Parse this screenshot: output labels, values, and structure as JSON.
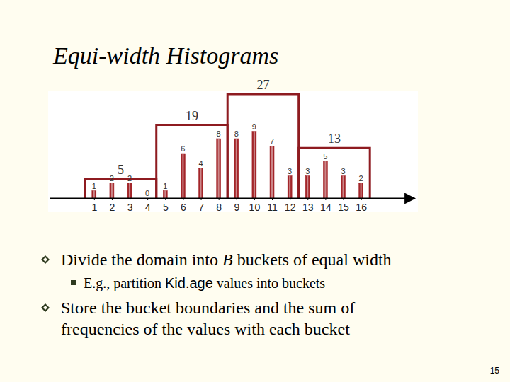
{
  "slide": {
    "title": "Equi-width Histograms",
    "bullets": [
      {
        "level": 1,
        "lines": [
          [
            {
              "text": "Divide the domain into "
            },
            {
              "text": "B",
              "italic": true
            },
            {
              "text": " buckets of equal width"
            }
          ]
        ]
      },
      {
        "level": 2,
        "lines": [
          [
            {
              "text": "E.g., partition "
            },
            {
              "text": "Kid.age",
              "sans": true
            },
            {
              "text": " values into buckets"
            }
          ]
        ]
      },
      {
        "level": 1,
        "lines": [
          [
            {
              "text": "Store the bucket boundaries and the sum of"
            }
          ],
          [
            {
              "text": "frequencies of the values with each bucket"
            }
          ]
        ]
      }
    ],
    "page": "15"
  },
  "chart_data": {
    "type": "histogram",
    "series": [
      {
        "type": "bar",
        "x": [
          1,
          2,
          3,
          4,
          5,
          6,
          7,
          8,
          9,
          10,
          11,
          12,
          13,
          14,
          15,
          16
        ],
        "values": [
          1,
          2,
          2,
          0,
          1,
          6,
          4,
          8,
          8,
          9,
          7,
          3,
          3,
          5,
          3,
          2
        ],
        "color": "#a3262a"
      },
      {
        "type": "histogram",
        "bins": [
          0.5,
          4.5,
          8.5,
          12.5,
          16.5
        ],
        "values": [
          5,
          19,
          27,
          13
        ],
        "axis": "y2",
        "color": "#8e1b20"
      }
    ],
    "xlim": [
      -1.5,
      19
    ],
    "xticks": [
      1,
      2,
      3,
      4,
      5,
      6,
      7,
      8,
      9,
      10,
      11,
      12,
      13,
      14,
      15,
      16
    ],
    "ylim": [
      0,
      13
    ],
    "y2lim": [
      0,
      27
    ],
    "data_labels": true,
    "tick_labels": "x"
  }
}
